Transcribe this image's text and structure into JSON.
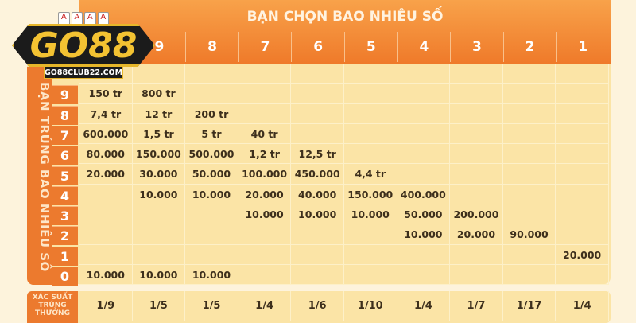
{
  "logo": {
    "text": "GO88",
    "url": "GO88CLUB22.COM",
    "cards": [
      "A",
      "A",
      "A",
      "A"
    ]
  },
  "title": "BẠN CHỌN BAO NHIÊU SỐ",
  "side_label": "BẠN TRÚNG BAO NHIÊU SỐ",
  "columns": [
    "",
    "9",
    "8",
    "7",
    "6",
    "5",
    "4",
    "3",
    "2",
    "1"
  ],
  "rows": [
    {
      "n": "",
      "v": [
        "",
        "",
        "",
        "",
        "",
        "",
        "",
        "",
        "",
        ""
      ]
    },
    {
      "n": "9",
      "v": [
        "150 tr",
        "800 tr",
        "",
        "",
        "",
        "",
        "",
        "",
        "",
        ""
      ]
    },
    {
      "n": "8",
      "v": [
        "7,4 tr",
        "12 tr",
        "200 tr",
        "",
        "",
        "",
        "",
        "",
        "",
        ""
      ]
    },
    {
      "n": "7",
      "v": [
        "600.000",
        "1,5 tr",
        "5 tr",
        "40 tr",
        "",
        "",
        "",
        "",
        "",
        ""
      ]
    },
    {
      "n": "6",
      "v": [
        "80.000",
        "150.000",
        "500.000",
        "1,2 tr",
        "12,5 tr",
        "",
        "",
        "",
        "",
        ""
      ]
    },
    {
      "n": "5",
      "v": [
        "20.000",
        "30.000",
        "50.000",
        "100.000",
        "450.000",
        "4,4 tr",
        "",
        "",
        "",
        ""
      ]
    },
    {
      "n": "4",
      "v": [
        "",
        "10.000",
        "10.000",
        "20.000",
        "40.000",
        "150.000",
        "400.000",
        "",
        "",
        ""
      ]
    },
    {
      "n": "3",
      "v": [
        "",
        "",
        "",
        "10.000",
        "10.000",
        "10.000",
        "50.000",
        "200.000",
        "",
        ""
      ]
    },
    {
      "n": "2",
      "v": [
        "",
        "",
        "",
        "",
        "",
        "",
        "10.000",
        "20.000",
        "90.000",
        ""
      ]
    },
    {
      "n": "1",
      "v": [
        "",
        "",
        "",
        "",
        "",
        "",
        "",
        "",
        "",
        "20.000"
      ]
    },
    {
      "n": "0",
      "v": [
        "10.000",
        "10.000",
        "10.000",
        "",
        "",
        "",
        "",
        "",
        "",
        ""
      ]
    }
  ],
  "probability": {
    "label": "XÁC SUẤT TRÚNG THƯỞNG",
    "values": [
      "1/9",
      "1/5",
      "1/5",
      "1/4",
      "1/6",
      "1/10",
      "1/4",
      "1/7",
      "1/17",
      "1/4"
    ]
  },
  "colors": {
    "orange": "#ec7a2e",
    "cell": "#fbe4a6",
    "gold": "#f3c232"
  }
}
